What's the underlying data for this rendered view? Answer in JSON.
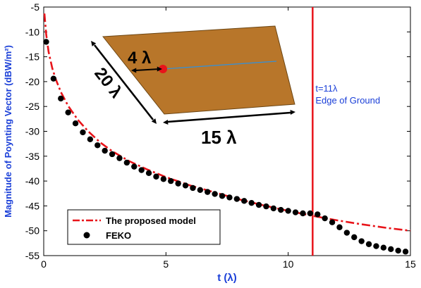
{
  "chart_data": {
    "type": "line",
    "xlabel": "t (λ)",
    "ylabel": "Magnitude of Poynting Vector (dBW/m²)",
    "xlim": [
      0,
      15
    ],
    "ylim": [
      -55,
      -5
    ],
    "x_ticks": [
      0,
      5,
      10,
      15
    ],
    "y_ticks": [
      -5,
      -10,
      -15,
      -20,
      -25,
      -30,
      -35,
      -40,
      -45,
      -50,
      -55
    ],
    "grid": false,
    "legend_position": "bottom-left",
    "colors": {
      "model": "#e8141a",
      "feko": "#000000",
      "edge_line": "#e8141a",
      "axis_label": "#1a3fd8",
      "annotation": "#1a3fd8",
      "plate": "#b8762a",
      "feed_line": "#3a8fd0"
    },
    "series": [
      {
        "name": "The proposed model",
        "style": "dash-dot",
        "x": [
          0.03,
          0.1,
          0.2,
          0.35,
          0.5,
          0.7,
          1.0,
          1.4,
          1.8,
          2.3,
          2.8,
          3.5,
          4.2,
          5.0,
          6.0,
          7.0,
          8.0,
          9.0,
          10.0,
          11.0,
          12.0,
          13.0,
          14.0,
          15.0
        ],
        "y": [
          -6.3,
          -10.5,
          -14.0,
          -17.3,
          -19.6,
          -22.1,
          -24.9,
          -27.7,
          -29.9,
          -32.2,
          -34.0,
          -36.0,
          -37.6,
          -39.2,
          -40.9,
          -42.3,
          -43.7,
          -44.9,
          -46.0,
          -47.0,
          -47.9,
          -48.7,
          -49.4,
          -50.0
        ]
      },
      {
        "name": "FEKO",
        "style": "markers",
        "x": [
          0.1,
          0.4,
          0.7,
          1.0,
          1.3,
          1.6,
          1.9,
          2.2,
          2.5,
          2.8,
          3.1,
          3.4,
          3.7,
          4.0,
          4.3,
          4.6,
          4.9,
          5.2,
          5.5,
          5.8,
          6.1,
          6.4,
          6.7,
          7.0,
          7.3,
          7.6,
          7.9,
          8.2,
          8.5,
          8.8,
          9.1,
          9.4,
          9.7,
          10.0,
          10.3,
          10.6,
          10.9,
          11.2,
          11.5,
          11.8,
          12.1,
          12.4,
          12.7,
          13.0,
          13.3,
          13.6,
          13.9,
          14.2,
          14.5,
          14.8
        ],
        "y": [
          -12.0,
          -19.4,
          -23.4,
          -26.2,
          -28.4,
          -30.2,
          -31.6,
          -32.8,
          -33.9,
          -34.6,
          -35.4,
          -36.3,
          -37.1,
          -37.8,
          -38.4,
          -39.1,
          -39.6,
          -40.0,
          -40.5,
          -40.9,
          -41.4,
          -41.8,
          -42.2,
          -42.6,
          -43.0,
          -43.3,
          -43.6,
          -44.0,
          -44.4,
          -44.8,
          -45.1,
          -45.5,
          -45.8,
          -46.0,
          -46.3,
          -46.5,
          -46.5,
          -46.7,
          -47.5,
          -48.3,
          -49.3,
          -50.4,
          -51.3,
          -52.1,
          -52.7,
          -53.1,
          -53.4,
          -53.7,
          -54.0,
          -54.2
        ]
      }
    ],
    "edge_marker": {
      "x": 11,
      "label_lines": [
        "t=11λ",
        "Edge of Ground"
      ]
    },
    "inset_labels": {
      "feed": "4 λ",
      "width": "20 λ",
      "length": "15 λ"
    }
  }
}
